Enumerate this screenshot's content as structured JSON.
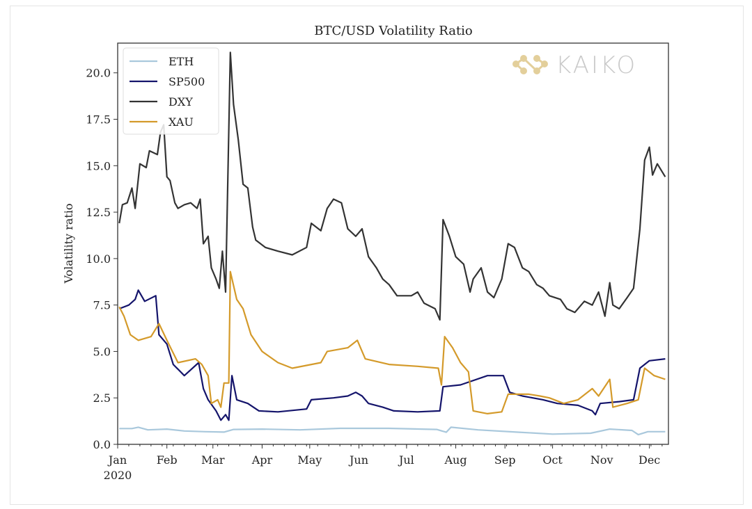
{
  "chart_data": {
    "type": "line",
    "title": "BTC/USD Volatility Ratio",
    "xlabel": "",
    "ylabel": "Volatility ratio",
    "xlim": [
      "2020-01-01",
      "2020-12-13"
    ],
    "ylim": [
      0,
      21.6
    ],
    "x_ticks": [
      {
        "date": "2020-01-01",
        "label": "Jan",
        "sublabel": "2020"
      },
      {
        "date": "2020-02-01",
        "label": "Feb"
      },
      {
        "date": "2020-03-01",
        "label": "Mar"
      },
      {
        "date": "2020-04-01",
        "label": "Apr"
      },
      {
        "date": "2020-05-01",
        "label": "May"
      },
      {
        "date": "2020-06-01",
        "label": "Jun"
      },
      {
        "date": "2020-07-01",
        "label": "Jul"
      },
      {
        "date": "2020-08-01",
        "label": "Aug"
      },
      {
        "date": "2020-09-01",
        "label": "Sep"
      },
      {
        "date": "2020-10-01",
        "label": "Oct"
      },
      {
        "date": "2020-11-01",
        "label": "Nov"
      },
      {
        "date": "2020-12-01",
        "label": "Dec"
      }
    ],
    "y_ticks": [
      "0.0",
      "2.5",
      "5.0",
      "7.5",
      "10.0",
      "12.5",
      "15.0",
      "17.5",
      "20.0"
    ],
    "grid": false,
    "legend": "top-left",
    "watermark": "KAIKO",
    "series": [
      {
        "name": "ETH",
        "color": "#a9c8dc",
        "points": [
          [
            "2020-01-02",
            0.85
          ],
          [
            "2020-01-10",
            0.85
          ],
          [
            "2020-01-14",
            0.92
          ],
          [
            "2020-01-20",
            0.78
          ],
          [
            "2020-02-01",
            0.82
          ],
          [
            "2020-02-12",
            0.72
          ],
          [
            "2020-02-25",
            0.68
          ],
          [
            "2020-03-08",
            0.66
          ],
          [
            "2020-03-14",
            0.8
          ],
          [
            "2020-04-01",
            0.82
          ],
          [
            "2020-04-25",
            0.78
          ],
          [
            "2020-05-20",
            0.86
          ],
          [
            "2020-06-20",
            0.86
          ],
          [
            "2020-07-20",
            0.8
          ],
          [
            "2020-07-26",
            0.65
          ],
          [
            "2020-07-29",
            0.92
          ],
          [
            "2020-08-15",
            0.78
          ],
          [
            "2020-09-10",
            0.65
          ],
          [
            "2020-10-01",
            0.55
          ],
          [
            "2020-10-25",
            0.6
          ],
          [
            "2020-11-06",
            0.82
          ],
          [
            "2020-11-20",
            0.75
          ],
          [
            "2020-11-24",
            0.52
          ],
          [
            "2020-11-30",
            0.68
          ],
          [
            "2020-12-11",
            0.68
          ]
        ]
      },
      {
        "name": "SP500",
        "color": "#14146b",
        "points": [
          [
            "2020-01-02",
            7.3
          ],
          [
            "2020-01-08",
            7.5
          ],
          [
            "2020-01-12",
            7.8
          ],
          [
            "2020-01-14",
            8.3
          ],
          [
            "2020-01-18",
            7.7
          ],
          [
            "2020-01-25",
            8.0
          ],
          [
            "2020-01-27",
            5.9
          ],
          [
            "2020-02-01",
            5.4
          ],
          [
            "2020-02-05",
            4.3
          ],
          [
            "2020-02-12",
            3.7
          ],
          [
            "2020-02-21",
            4.4
          ],
          [
            "2020-02-24",
            3.0
          ],
          [
            "2020-02-27",
            2.4
          ],
          [
            "2020-03-03",
            1.8
          ],
          [
            "2020-03-06",
            1.3
          ],
          [
            "2020-03-09",
            1.6
          ],
          [
            "2020-03-11",
            1.3
          ],
          [
            "2020-03-13",
            3.7
          ],
          [
            "2020-03-16",
            2.4
          ],
          [
            "2020-03-23",
            2.2
          ],
          [
            "2020-03-30",
            1.8
          ],
          [
            "2020-04-11",
            1.75
          ],
          [
            "2020-04-29",
            1.9
          ],
          [
            "2020-05-02",
            2.4
          ],
          [
            "2020-05-16",
            2.5
          ],
          [
            "2020-05-25",
            2.6
          ],
          [
            "2020-05-30",
            2.8
          ],
          [
            "2020-06-03",
            2.6
          ],
          [
            "2020-06-07",
            2.2
          ],
          [
            "2020-06-16",
            2.0
          ],
          [
            "2020-06-23",
            1.8
          ],
          [
            "2020-07-08",
            1.75
          ],
          [
            "2020-07-22",
            1.8
          ],
          [
            "2020-07-24",
            3.1
          ],
          [
            "2020-08-04",
            3.2
          ],
          [
            "2020-08-21",
            3.7
          ],
          [
            "2020-08-31",
            3.7
          ],
          [
            "2020-09-04",
            2.8
          ],
          [
            "2020-09-12",
            2.6
          ],
          [
            "2020-09-25",
            2.4
          ],
          [
            "2020-10-04",
            2.2
          ],
          [
            "2020-10-17",
            2.1
          ],
          [
            "2020-10-26",
            1.8
          ],
          [
            "2020-10-28",
            1.6
          ],
          [
            "2020-10-31",
            2.2
          ],
          [
            "2020-11-12",
            2.3
          ],
          [
            "2020-11-21",
            2.4
          ],
          [
            "2020-11-25",
            4.1
          ],
          [
            "2020-12-01",
            4.5
          ],
          [
            "2020-12-11",
            4.6
          ]
        ]
      },
      {
        "name": "DXY",
        "color": "#333333",
        "points": [
          [
            "2020-01-02",
            11.9
          ],
          [
            "2020-01-04",
            12.9
          ],
          [
            "2020-01-07",
            13.0
          ],
          [
            "2020-01-10",
            13.8
          ],
          [
            "2020-01-12",
            12.7
          ],
          [
            "2020-01-15",
            15.1
          ],
          [
            "2020-01-19",
            14.9
          ],
          [
            "2020-01-21",
            15.8
          ],
          [
            "2020-01-26",
            15.6
          ],
          [
            "2020-01-28",
            16.8
          ],
          [
            "2020-01-30",
            17.2
          ],
          [
            "2020-02-01",
            14.4
          ],
          [
            "2020-02-03",
            14.2
          ],
          [
            "2020-02-06",
            13.0
          ],
          [
            "2020-02-08",
            12.7
          ],
          [
            "2020-02-12",
            12.9
          ],
          [
            "2020-02-16",
            13.0
          ],
          [
            "2020-02-20",
            12.7
          ],
          [
            "2020-02-22",
            13.2
          ],
          [
            "2020-02-24",
            10.8
          ],
          [
            "2020-02-27",
            11.2
          ],
          [
            "2020-02-29",
            9.5
          ],
          [
            "2020-03-03",
            8.9
          ],
          [
            "2020-03-05",
            8.4
          ],
          [
            "2020-03-07",
            10.4
          ],
          [
            "2020-03-09",
            8.2
          ],
          [
            "2020-03-12",
            21.1
          ],
          [
            "2020-03-14",
            18.3
          ],
          [
            "2020-03-17",
            16.4
          ],
          [
            "2020-03-20",
            14.0
          ],
          [
            "2020-03-23",
            13.8
          ],
          [
            "2020-03-26",
            11.7
          ],
          [
            "2020-03-28",
            11.0
          ],
          [
            "2020-04-03",
            10.6
          ],
          [
            "2020-04-11",
            10.4
          ],
          [
            "2020-04-20",
            10.2
          ],
          [
            "2020-04-29",
            10.6
          ],
          [
            "2020-05-02",
            11.9
          ],
          [
            "2020-05-08",
            11.5
          ],
          [
            "2020-05-12",
            12.7
          ],
          [
            "2020-05-16",
            13.2
          ],
          [
            "2020-05-21",
            13.0
          ],
          [
            "2020-05-25",
            11.6
          ],
          [
            "2020-05-30",
            11.2
          ],
          [
            "2020-06-03",
            11.6
          ],
          [
            "2020-06-07",
            10.1
          ],
          [
            "2020-06-12",
            9.5
          ],
          [
            "2020-06-16",
            8.9
          ],
          [
            "2020-06-20",
            8.6
          ],
          [
            "2020-06-25",
            8.0
          ],
          [
            "2020-07-04",
            8.0
          ],
          [
            "2020-07-08",
            8.2
          ],
          [
            "2020-07-12",
            7.6
          ],
          [
            "2020-07-19",
            7.3
          ],
          [
            "2020-07-22",
            6.7
          ],
          [
            "2020-07-24",
            12.1
          ],
          [
            "2020-07-28",
            11.2
          ],
          [
            "2020-08-01",
            10.1
          ],
          [
            "2020-08-06",
            9.7
          ],
          [
            "2020-08-10",
            8.2
          ],
          [
            "2020-08-12",
            8.9
          ],
          [
            "2020-08-17",
            9.5
          ],
          [
            "2020-08-21",
            8.2
          ],
          [
            "2020-08-25",
            7.9
          ],
          [
            "2020-08-30",
            8.9
          ],
          [
            "2020-09-03",
            10.8
          ],
          [
            "2020-09-07",
            10.6
          ],
          [
            "2020-09-12",
            9.5
          ],
          [
            "2020-09-16",
            9.3
          ],
          [
            "2020-09-21",
            8.6
          ],
          [
            "2020-09-25",
            8.4
          ],
          [
            "2020-09-29",
            8.0
          ],
          [
            "2020-10-06",
            7.8
          ],
          [
            "2020-10-10",
            7.3
          ],
          [
            "2020-10-15",
            7.1
          ],
          [
            "2020-10-21",
            7.7
          ],
          [
            "2020-10-26",
            7.5
          ],
          [
            "2020-10-30",
            8.2
          ],
          [
            "2020-11-03",
            6.9
          ],
          [
            "2020-11-06",
            8.7
          ],
          [
            "2020-11-08",
            7.5
          ],
          [
            "2020-11-12",
            7.3
          ],
          [
            "2020-11-17",
            7.9
          ],
          [
            "2020-11-21",
            8.4
          ],
          [
            "2020-11-25",
            11.6
          ],
          [
            "2020-11-28",
            15.3
          ],
          [
            "2020-12-01",
            16.0
          ],
          [
            "2020-12-03",
            14.5
          ],
          [
            "2020-12-06",
            15.1
          ],
          [
            "2020-12-11",
            14.4
          ]
        ]
      },
      {
        "name": "XAU",
        "color": "#d49a2a",
        "points": [
          [
            "2020-01-02",
            7.4
          ],
          [
            "2020-01-05",
            6.9
          ],
          [
            "2020-01-09",
            5.9
          ],
          [
            "2020-01-14",
            5.6
          ],
          [
            "2020-01-22",
            5.8
          ],
          [
            "2020-01-27",
            6.5
          ],
          [
            "2020-02-01",
            5.6
          ],
          [
            "2020-02-08",
            4.4
          ],
          [
            "2020-02-19",
            4.6
          ],
          [
            "2020-02-23",
            4.3
          ],
          [
            "2020-02-27",
            3.7
          ],
          [
            "2020-02-29",
            2.2
          ],
          [
            "2020-03-04",
            2.4
          ],
          [
            "2020-03-06",
            2.0
          ],
          [
            "2020-03-08",
            3.3
          ],
          [
            "2020-03-11",
            3.3
          ],
          [
            "2020-03-12",
            9.3
          ],
          [
            "2020-03-16",
            7.8
          ],
          [
            "2020-03-20",
            7.3
          ],
          [
            "2020-03-25",
            5.9
          ],
          [
            "2020-04-01",
            5.0
          ],
          [
            "2020-04-11",
            4.4
          ],
          [
            "2020-04-20",
            4.1
          ],
          [
            "2020-05-08",
            4.4
          ],
          [
            "2020-05-12",
            5.0
          ],
          [
            "2020-05-25",
            5.2
          ],
          [
            "2020-05-31",
            5.6
          ],
          [
            "2020-06-05",
            4.6
          ],
          [
            "2020-06-20",
            4.3
          ],
          [
            "2020-07-08",
            4.2
          ],
          [
            "2020-07-21",
            4.1
          ],
          [
            "2020-07-23",
            3.2
          ],
          [
            "2020-07-25",
            5.8
          ],
          [
            "2020-07-30",
            5.2
          ],
          [
            "2020-08-04",
            4.4
          ],
          [
            "2020-08-09",
            3.9
          ],
          [
            "2020-08-12",
            1.8
          ],
          [
            "2020-08-21",
            1.65
          ],
          [
            "2020-08-30",
            1.75
          ],
          [
            "2020-09-03",
            2.7
          ],
          [
            "2020-09-16",
            2.7
          ],
          [
            "2020-09-23",
            2.6
          ],
          [
            "2020-09-29",
            2.5
          ],
          [
            "2020-10-08",
            2.2
          ],
          [
            "2020-10-17",
            2.4
          ],
          [
            "2020-10-26",
            3.0
          ],
          [
            "2020-10-30",
            2.6
          ],
          [
            "2020-11-06",
            3.5
          ],
          [
            "2020-11-08",
            2.0
          ],
          [
            "2020-11-17",
            2.2
          ],
          [
            "2020-11-24",
            2.4
          ],
          [
            "2020-11-28",
            4.1
          ],
          [
            "2020-12-04",
            3.7
          ],
          [
            "2020-12-11",
            3.5
          ]
        ]
      }
    ]
  }
}
